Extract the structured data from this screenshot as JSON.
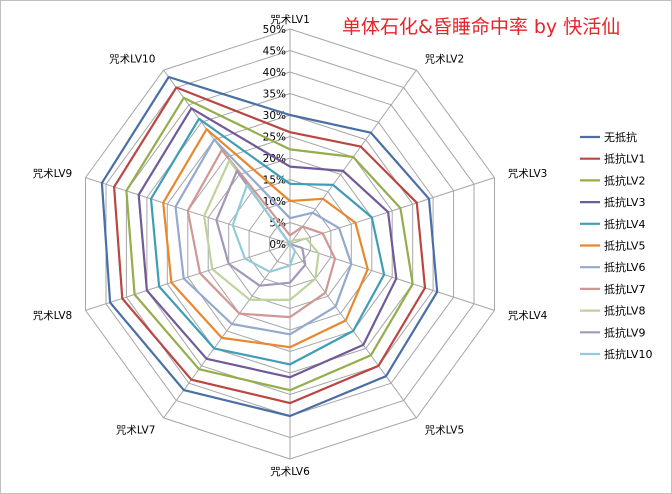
{
  "chart_data": {
    "type": "radar",
    "title": "单体石化&昏睡命中率 by 快活仙",
    "categories": [
      "咒术LV1",
      "咒术LV2",
      "咒术LV3",
      "咒术LV4",
      "咒术LV5",
      "咒术LV6",
      "咒术LV7",
      "咒术LV8",
      "咒术LV9",
      "咒术LV10"
    ],
    "ticks": [
      "0%",
      "5%",
      "10%",
      "15%",
      "20%",
      "25%",
      "30%",
      "35%",
      "40%",
      "45%",
      "50%"
    ],
    "rlim": [
      0,
      50
    ],
    "unit": "%",
    "legend_position": "right",
    "grid": true,
    "series": [
      {
        "name": "无抵抗",
        "color": "#4a6fa5",
        "values": [
          30,
          32,
          34,
          36,
          38,
          40,
          42,
          44,
          46,
          48
        ]
      },
      {
        "name": "抵抗LV1",
        "color": "#b94643",
        "values": [
          26,
          28,
          31,
          33,
          35,
          37,
          39,
          41,
          43,
          45
        ]
      },
      {
        "name": "抵抗LV2",
        "color": "#93ae4b",
        "values": [
          22,
          25,
          27,
          30,
          32,
          34,
          36,
          38,
          40,
          42
        ]
      },
      {
        "name": "抵抗LV3",
        "color": "#715a98",
        "values": [
          18,
          21,
          24,
          26,
          29,
          31,
          33,
          35,
          37,
          39
        ]
      },
      {
        "name": "抵抗LV4",
        "color": "#3f9db6",
        "values": [
          14,
          17,
          20,
          23,
          25,
          28,
          30,
          32,
          34,
          36
        ]
      },
      {
        "name": "抵抗LV5",
        "color": "#e7882e",
        "values": [
          10,
          13,
          16,
          19,
          22,
          24,
          27,
          29,
          31,
          33
        ]
      },
      {
        "name": "抵抗LV6",
        "color": "#93a9cf",
        "values": [
          6,
          9,
          12,
          15,
          18,
          21,
          23,
          26,
          28,
          30
        ]
      },
      {
        "name": "抵抗LV7",
        "color": "#d09795",
        "values": [
          2,
          5,
          8,
          11,
          14,
          17,
          20,
          22,
          25,
          27
        ]
      },
      {
        "name": "抵抗LV8",
        "color": "#bed39c",
        "values": [
          0,
          1,
          4,
          7,
          10,
          13,
          16,
          19,
          21,
          24
        ]
      },
      {
        "name": "抵抗LV9",
        "color": "#a497b9",
        "values": [
          0,
          0,
          0,
          3,
          6,
          9,
          12,
          15,
          18,
          21
        ]
      },
      {
        "name": "抵抗LV10",
        "color": "#92cbdb",
        "values": [
          0,
          0,
          0,
          0,
          2,
          5,
          8,
          11,
          14,
          17
        ]
      }
    ]
  }
}
